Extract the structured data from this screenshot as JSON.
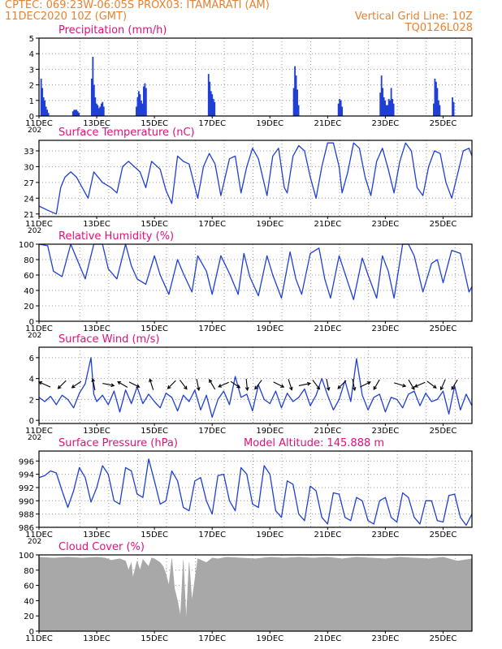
{
  "header": {
    "line1": "CPTEC:   069:23W-06:05S   PROX03: ITAMARATI (AM)",
    "line2_left": "11DEC2020  10Z (GMT)",
    "line2_right": "Vertical Grid Line: 10Z",
    "line3_right": "TQ0126L028",
    "colors": {
      "header": "#e8822e",
      "title": "#e0107a",
      "series": "#1f3fd6",
      "cloud": "#a8a8a8"
    }
  },
  "x_axis": {
    "day_start": 11,
    "day_end": 26,
    "tick_labels": [
      "11DEC",
      "13DEC",
      "15DEC",
      "17DEC",
      "19DEC",
      "21DEC",
      "23DEC",
      "25DEC"
    ],
    "cut_label": "202"
  },
  "chart_data": [
    {
      "type": "bar",
      "title": "Precipitation (mm/h)",
      "ylim": [
        0,
        5
      ],
      "yticks": [
        "0",
        "1",
        "2",
        "3",
        "4",
        "5"
      ],
      "ytick_values": [
        0,
        1,
        2,
        3,
        4,
        5
      ],
      "events": [
        {
          "day": 11.05,
          "values": [
            2.4,
            1.8,
            1.2,
            1.0,
            0.6,
            0.4,
            0.2
          ]
        },
        {
          "day": 12.15,
          "values": [
            0.3,
            0.4,
            0.4,
            0.4,
            0.3,
            0.2
          ]
        },
        {
          "day": 12.8,
          "values": [
            2.4,
            3.8,
            2.0,
            1.2,
            0.8,
            0.7,
            0.5,
            0.6,
            0.8,
            0.9,
            0.6
          ]
        },
        {
          "day": 14.35,
          "values": [
            0.6,
            1.2,
            1.6,
            1.4,
            1.0,
            0.8,
            1.9,
            2.1,
            1.8
          ]
        },
        {
          "day": 16.85,
          "values": [
            2.7,
            2.2,
            1.6,
            1.4,
            1.1,
            0.9
          ]
        },
        {
          "day": 19.8,
          "values": [
            1.8,
            3.2,
            2.6,
            1.7,
            0.7
          ]
        },
        {
          "day": 21.35,
          "values": [
            0.8,
            1.1,
            1.0,
            0.6
          ]
        },
        {
          "day": 22.8,
          "values": [
            1.5,
            2.6,
            1.8,
            1.2,
            1.0,
            0.7,
            0.7,
            1.1,
            1.0,
            1.8,
            1.1,
            0.8
          ]
        },
        {
          "day": 24.65,
          "values": [
            0.8,
            2.4,
            2.2,
            1.8,
            1.0,
            0.7
          ]
        },
        {
          "day": 25.3,
          "values": [
            1.2,
            0.9
          ]
        }
      ]
    },
    {
      "type": "line",
      "title": "Surface Temperature (nC)",
      "ylim": [
        20.5,
        35
      ],
      "yticks": [
        "21",
        "24",
        "27",
        "30",
        "33"
      ],
      "ytick_values": [
        21,
        24,
        27,
        30,
        33
      ],
      "x": [
        11.0,
        11.3,
        11.6,
        11.75,
        11.9,
        12.1,
        12.3,
        12.5,
        12.7,
        12.9,
        13.2,
        13.5,
        13.7,
        13.9,
        14.1,
        14.3,
        14.5,
        14.7,
        14.9,
        15.2,
        15.4,
        15.6,
        15.8,
        16.0,
        16.2,
        16.5,
        16.7,
        16.9,
        17.1,
        17.3,
        17.6,
        17.8,
        18.0,
        18.2,
        18.4,
        18.6,
        18.9,
        19.1,
        19.3,
        19.5,
        19.6,
        19.8,
        20.0,
        20.2,
        20.4,
        20.6,
        20.8,
        21.0,
        21.2,
        21.4,
        21.5,
        21.7,
        21.9,
        22.1,
        22.3,
        22.5,
        22.7,
        22.9,
        23.1,
        23.3,
        23.5,
        23.7,
        23.9,
        24.1,
        24.3,
        24.5,
        24.7,
        24.9,
        25.1,
        25.3,
        25.5,
        25.7,
        25.9,
        26.0
      ],
      "y": [
        22.5,
        21.7,
        21.0,
        26.0,
        28.0,
        29.0,
        28.0,
        26.0,
        24.0,
        29.0,
        27.0,
        26.0,
        25.0,
        30.0,
        31.0,
        30.0,
        29.0,
        26.0,
        31.0,
        29.5,
        25.5,
        23.0,
        32.0,
        31.0,
        30.5,
        24.0,
        30.0,
        32.5,
        30.5,
        24.5,
        31.5,
        32.0,
        25.0,
        30.0,
        33.5,
        31.5,
        24.5,
        32.0,
        33.5,
        26.0,
        25.0,
        32.0,
        34.0,
        33.0,
        28.0,
        24.0,
        30.0,
        34.5,
        34.5,
        30.0,
        25.0,
        29.0,
        34.5,
        33.5,
        28.0,
        24.5,
        31.0,
        33.5,
        29.5,
        25.0,
        31.0,
        34.5,
        33.0,
        26.0,
        24.5,
        30.0,
        33.0,
        32.5,
        27.0,
        24.0,
        28.5,
        33.0,
        33.5,
        32.0
      ]
    },
    {
      "type": "line",
      "title": "Relative Humidity (%)",
      "ylim": [
        0,
        100
      ],
      "yticks": [
        "0",
        "20",
        "40",
        "60",
        "80",
        "100"
      ],
      "ytick_values": [
        0,
        20,
        40,
        60,
        80,
        100
      ],
      "x": [
        11.0,
        11.3,
        11.5,
        11.8,
        12.1,
        12.3,
        12.6,
        12.9,
        13.2,
        13.4,
        13.7,
        14.0,
        14.2,
        14.4,
        14.7,
        15.0,
        15.2,
        15.5,
        15.8,
        16.0,
        16.3,
        16.5,
        16.8,
        17.0,
        17.3,
        17.6,
        17.9,
        18.1,
        18.3,
        18.6,
        18.9,
        19.1,
        19.4,
        19.7,
        19.9,
        20.1,
        20.4,
        20.7,
        20.9,
        21.1,
        21.4,
        21.6,
        21.9,
        22.2,
        22.4,
        22.7,
        22.9,
        23.1,
        23.3,
        23.6,
        23.8,
        24.0,
        24.3,
        24.6,
        24.8,
        25.0,
        25.3,
        25.6,
        25.9,
        26.0
      ],
      "y": [
        100,
        98,
        65,
        58,
        100,
        82,
        55,
        100,
        100,
        68,
        55,
        100,
        72,
        55,
        48,
        85,
        60,
        35,
        80,
        62,
        38,
        85,
        65,
        35,
        85,
        62,
        35,
        88,
        58,
        33,
        85,
        60,
        30,
        90,
        55,
        35,
        88,
        95,
        55,
        30,
        85,
        62,
        28,
        82,
        60,
        30,
        85,
        65,
        30,
        100,
        100,
        85,
        38,
        75,
        80,
        50,
        92,
        88,
        38,
        45
      ]
    },
    {
      "type": "line",
      "title": "Surface Wind (m/s)",
      "ylim": [
        -0.3,
        7
      ],
      "yticks": [
        "0",
        "2",
        "4",
        "6"
      ],
      "ytick_values": [
        0,
        2,
        4,
        6
      ],
      "x": [
        11.0,
        11.2,
        11.4,
        11.6,
        11.8,
        12.0,
        12.2,
        12.4,
        12.6,
        12.8,
        12.9,
        13.0,
        13.2,
        13.4,
        13.6,
        13.8,
        14.0,
        14.2,
        14.4,
        14.6,
        14.8,
        15.0,
        15.2,
        15.4,
        15.6,
        15.8,
        16.0,
        16.2,
        16.4,
        16.6,
        16.8,
        17.0,
        17.2,
        17.4,
        17.6,
        17.8,
        18.0,
        18.2,
        18.4,
        18.6,
        18.8,
        19.0,
        19.2,
        19.4,
        19.6,
        19.8,
        20.0,
        20.2,
        20.4,
        20.6,
        20.8,
        21.0,
        21.2,
        21.4,
        21.6,
        21.8,
        22.0,
        22.2,
        22.4,
        22.6,
        22.8,
        23.0,
        23.2,
        23.4,
        23.6,
        23.8,
        24.0,
        24.2,
        24.4,
        24.6,
        24.8,
        25.0,
        25.2,
        25.4,
        25.6,
        25.8,
        26.0
      ],
      "y": [
        2.2,
        1.8,
        2.3,
        1.5,
        2.4,
        2.0,
        1.2,
        2.6,
        3.5,
        6.0,
        2.5,
        1.8,
        2.4,
        1.5,
        2.8,
        0.8,
        2.9,
        1.6,
        3.2,
        1.6,
        2.5,
        1.8,
        1.2,
        2.6,
        2.2,
        0.9,
        2.4,
        1.8,
        2.9,
        1.0,
        2.4,
        0.3,
        2.0,
        2.8,
        1.5,
        4.2,
        2.2,
        2.5,
        0.9,
        3.4,
        2.0,
        1.6,
        2.8,
        1.2,
        2.6,
        1.8,
        2.2,
        3.0,
        1.4,
        2.4,
        4.0,
        2.4,
        1.0,
        2.0,
        3.8,
        1.8,
        5.9,
        2.4,
        1.0,
        2.2,
        2.5,
        0.8,
        2.2,
        2.0,
        1.2,
        2.5,
        2.8,
        1.4,
        2.6,
        1.8,
        2.0,
        2.8,
        0.6,
        3.3,
        1.0,
        2.5,
        1.4
      ],
      "arrows": [
        {
          "day": 11.2,
          "dx": -1,
          "dy": -0.45
        },
        {
          "day": 11.8,
          "dx": -0.7,
          "dy": 0.7
        },
        {
          "day": 12.3,
          "dx": -0.8,
          "dy": 0.55
        },
        {
          "day": 12.9,
          "dx": -0.2,
          "dy": -1
        },
        {
          "day": 13.4,
          "dx": 1,
          "dy": 0.2
        },
        {
          "day": 13.9,
          "dx": -0.85,
          "dy": -0.5
        },
        {
          "day": 14.3,
          "dx": 0.9,
          "dy": 0.45
        },
        {
          "day": 14.9,
          "dx": -0.3,
          "dy": -0.95
        },
        {
          "day": 15.6,
          "dx": -0.7,
          "dy": 0.7
        },
        {
          "day": 16.0,
          "dx": 0.6,
          "dy": 0.8
        },
        {
          "day": 16.5,
          "dx": 0.2,
          "dy": 1
        },
        {
          "day": 17.0,
          "dx": -0.5,
          "dy": -0.85
        },
        {
          "day": 17.4,
          "dx": -0.9,
          "dy": 0.4
        },
        {
          "day": 17.8,
          "dx": 0.8,
          "dy": 0.55
        },
        {
          "day": 18.2,
          "dx": 0.1,
          "dy": 1
        },
        {
          "day": 18.6,
          "dx": -0.6,
          "dy": 0.8
        },
        {
          "day": 19.3,
          "dx": 0.9,
          "dy": 0.45
        },
        {
          "day": 19.7,
          "dx": 0.3,
          "dy": 0.95
        },
        {
          "day": 20.2,
          "dx": 1,
          "dy": -0.2
        },
        {
          "day": 20.6,
          "dx": 0.6,
          "dy": 0.8
        },
        {
          "day": 21.0,
          "dx": 0.2,
          "dy": 1
        },
        {
          "day": 21.5,
          "dx": -0.7,
          "dy": 0.7
        },
        {
          "day": 21.9,
          "dx": 0.2,
          "dy": 1
        },
        {
          "day": 22.3,
          "dx": 0.9,
          "dy": -0.45
        },
        {
          "day": 22.7,
          "dx": -0.5,
          "dy": 0.85
        },
        {
          "day": 23.5,
          "dx": 1,
          "dy": 0.3
        },
        {
          "day": 23.9,
          "dx": 0.5,
          "dy": 0.85
        },
        {
          "day": 24.2,
          "dx": -0.9,
          "dy": 0.4
        },
        {
          "day": 24.6,
          "dx": 0.8,
          "dy": 0.6
        },
        {
          "day": 25.0,
          "dx": -0.4,
          "dy": 0.9
        },
        {
          "day": 25.4,
          "dx": -0.5,
          "dy": 0.85
        }
      ]
    },
    {
      "type": "line",
      "title": "Surface Pressure (hPa)",
      "subtitle": "Model Altitude: 145.888 m",
      "ylim": [
        986,
        997.5
      ],
      "yticks": [
        "986",
        "988",
        "990",
        "992",
        "994",
        "996"
      ],
      "ytick_values": [
        986,
        988,
        990,
        992,
        994,
        996
      ],
      "x": [
        11.0,
        11.2,
        11.4,
        11.6,
        11.8,
        12.0,
        12.2,
        12.4,
        12.6,
        12.8,
        13.0,
        13.2,
        13.4,
        13.6,
        13.8,
        14.0,
        14.2,
        14.4,
        14.6,
        14.8,
        15.0,
        15.2,
        15.4,
        15.6,
        15.8,
        16.0,
        16.2,
        16.4,
        16.6,
        16.8,
        17.0,
        17.2,
        17.4,
        17.6,
        17.8,
        18.0,
        18.2,
        18.4,
        18.6,
        18.8,
        19.0,
        19.2,
        19.4,
        19.6,
        19.8,
        20.0,
        20.2,
        20.4,
        20.6,
        20.8,
        21.0,
        21.2,
        21.4,
        21.6,
        21.8,
        22.0,
        22.2,
        22.4,
        22.6,
        22.8,
        23.0,
        23.2,
        23.4,
        23.6,
        23.8,
        24.0,
        24.2,
        24.4,
        24.6,
        24.8,
        25.0,
        25.2,
        25.4,
        25.6,
        25.8,
        26.0
      ],
      "y": [
        993.5,
        993.8,
        994.5,
        994.2,
        991.5,
        989.0,
        991.5,
        995.0,
        993.5,
        989.8,
        992.0,
        995.3,
        994.0,
        990.0,
        989.5,
        995.0,
        994.5,
        991.0,
        990.5,
        996.3,
        993.0,
        989.5,
        990.0,
        994.5,
        993.0,
        989.0,
        988.5,
        993.0,
        993.5,
        990.0,
        988.0,
        993.8,
        994.0,
        990.0,
        988.5,
        995.0,
        994.0,
        989.5,
        989.0,
        995.3,
        994.0,
        988.5,
        987.5,
        993.0,
        992.5,
        988.0,
        987.0,
        992.2,
        991.5,
        987.5,
        986.5,
        991.2,
        991.0,
        987.5,
        987.0,
        990.5,
        990.0,
        987.0,
        986.5,
        990.0,
        990.5,
        987.5,
        986.8,
        991.2,
        990.5,
        987.5,
        986.5,
        990.0,
        990.0,
        987.0,
        986.8,
        990.8,
        991.0,
        987.5,
        986.3,
        988.0
      ]
    },
    {
      "type": "area",
      "title": "Cloud Cover (%)",
      "ylim": [
        0,
        100
      ],
      "yticks": [
        "0",
        "20",
        "40",
        "60",
        "80",
        "100"
      ],
      "ytick_values": [
        0,
        20,
        40,
        60,
        80,
        100
      ],
      "x": [
        11.0,
        11.5,
        12.0,
        12.5,
        13.0,
        13.3,
        13.5,
        13.8,
        14.0,
        14.1,
        14.2,
        14.25,
        14.4,
        14.5,
        14.6,
        14.8,
        14.9,
        15.0,
        15.2,
        15.3,
        15.4,
        15.5,
        15.6,
        15.7,
        15.8,
        15.9,
        16.0,
        16.1,
        16.2,
        16.3,
        16.5,
        16.8,
        17.0,
        17.2,
        17.5,
        18.0,
        18.5,
        19.0,
        19.5,
        20.0,
        20.5,
        21.0,
        21.5,
        22.0,
        22.5,
        23.0,
        23.5,
        24.0,
        24.5,
        25.0,
        25.5,
        26.0
      ],
      "y": [
        97,
        96,
        97,
        96,
        97,
        96,
        93,
        95,
        92,
        80,
        90,
        70,
        92,
        80,
        94,
        85,
        96,
        95,
        90,
        85,
        75,
        60,
        95,
        55,
        40,
        20,
        93,
        15,
        90,
        40,
        95,
        90,
        96,
        95,
        97,
        96,
        95,
        97,
        96,
        97,
        96,
        97,
        95,
        97,
        96,
        95,
        97,
        96,
        95,
        97,
        92,
        95
      ]
    }
  ]
}
